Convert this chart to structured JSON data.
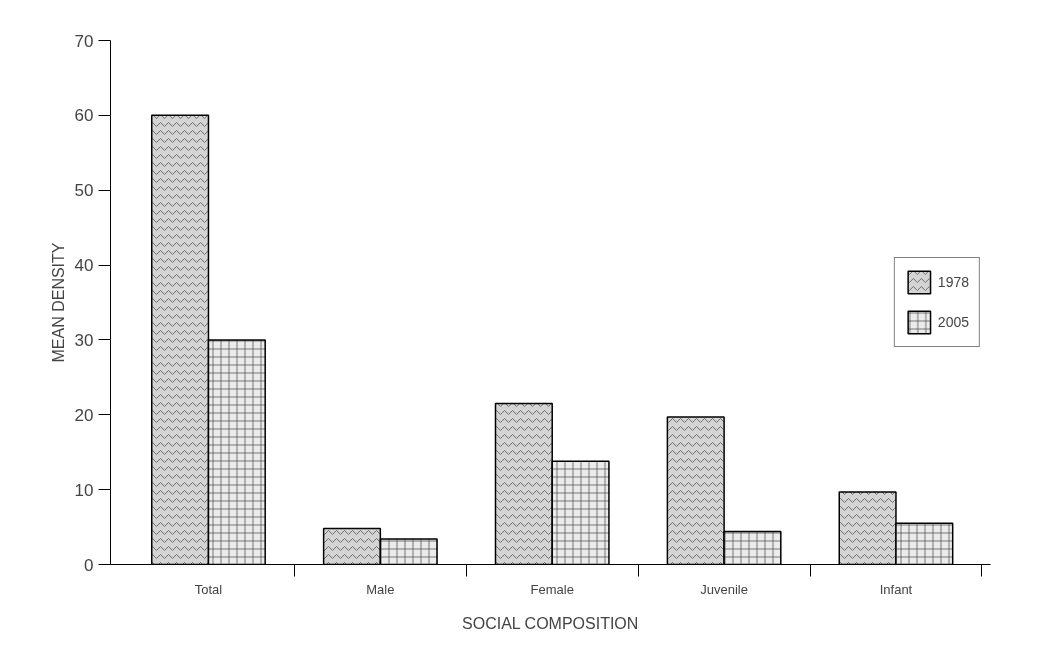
{
  "chart_data": {
    "type": "bar",
    "xlabel": "SOCIAL COMPOSITION",
    "ylabel": "MEAN DENSITY",
    "categories": [
      "Total",
      "Male",
      "Female",
      "Juvenile",
      "Infant"
    ],
    "series": [
      {
        "name": "1978",
        "color": "#d4d4d4",
        "values": [
          60,
          4.8,
          21.5,
          19.7,
          9.7
        ]
      },
      {
        "name": "2005",
        "color": "#ececec",
        "values": [
          30,
          3.4,
          13.8,
          4.4,
          5.5
        ]
      }
    ],
    "ylim": [
      0,
      70
    ],
    "yticks": [
      0,
      10,
      20,
      30,
      40,
      50,
      60,
      70
    ],
    "grid": false,
    "legend": "right"
  }
}
